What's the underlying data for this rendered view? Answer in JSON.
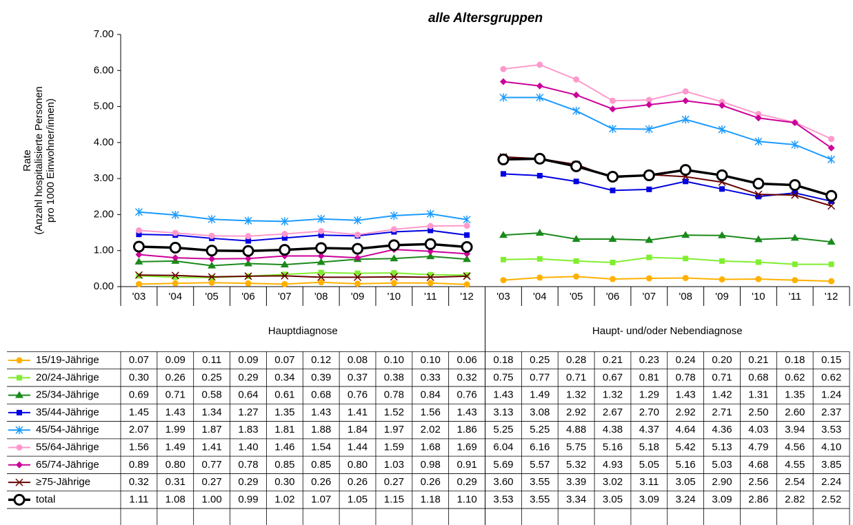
{
  "chart_data": {
    "type": "line",
    "title": "alle Altersgruppen",
    "ylabel": [
      "Rate",
      "(Anzahl hospitalisierte Personen",
      "pro 1000 Einwohner/innen)"
    ],
    "category_groups": [
      "Hauptdiagnose",
      "Haupt- und/oder Nebendiagnose"
    ],
    "categories": [
      "'03",
      "'04",
      "'05",
      "'06",
      "'07",
      "'08",
      "'09",
      "'10",
      "'11",
      "'12",
      "'03",
      "'04",
      "'05",
      "'06",
      "'07",
      "'08",
      "'09",
      "'10",
      "'11",
      "'12"
    ],
    "ylim": [
      0,
      7
    ],
    "yticks": [
      {
        "value": 0,
        "label": "0.00"
      },
      {
        "value": 1,
        "label": "1.00"
      },
      {
        "value": 2,
        "label": "2.00"
      },
      {
        "value": 3,
        "label": "3.00"
      },
      {
        "value": 4,
        "label": "4.00"
      },
      {
        "value": 5,
        "label": "5.00"
      },
      {
        "value": 6,
        "label": "6.00"
      },
      {
        "value": 7,
        "label": "7.00"
      }
    ],
    "series": [
      {
        "name": "15/19-Jährige",
        "color": "#ffb000",
        "marker": "circle",
        "values": [
          0.07,
          0.09,
          0.11,
          0.09,
          0.07,
          0.12,
          0.08,
          0.1,
          0.1,
          0.06,
          0.18,
          0.25,
          0.28,
          0.21,
          0.23,
          0.24,
          0.2,
          0.21,
          0.18,
          0.15
        ],
        "value_labels": [
          "0.07",
          "0.09",
          "0.11",
          "0.09",
          "0.07",
          "0.12",
          "0.08",
          "0.10",
          "0.10",
          "0.06",
          "0.18",
          "0.25",
          "0.28",
          "0.21",
          "0.23",
          "0.24",
          "0.20",
          "0.21",
          "0.18",
          "0.15"
        ]
      },
      {
        "name": "20/24-Jährige",
        "color": "#80ee30",
        "marker": "square",
        "values": [
          0.3,
          0.26,
          0.25,
          0.29,
          0.34,
          0.39,
          0.37,
          0.38,
          0.33,
          0.32,
          0.75,
          0.77,
          0.71,
          0.67,
          0.81,
          0.78,
          0.71,
          0.68,
          0.62,
          0.62
        ],
        "value_labels": [
          "0.30",
          "0.26",
          "0.25",
          "0.29",
          "0.34",
          "0.39",
          "0.37",
          "0.38",
          "0.33",
          "0.32",
          "0.75",
          "0.77",
          "0.71",
          "0.67",
          "0.81",
          "0.78",
          "0.71",
          "0.68",
          "0.62",
          "0.62"
        ]
      },
      {
        "name": "25/34-Jährige",
        "color": "#1a8a1a",
        "marker": "triangle",
        "values": [
          0.69,
          0.71,
          0.58,
          0.64,
          0.61,
          0.68,
          0.76,
          0.78,
          0.84,
          0.76,
          1.43,
          1.49,
          1.32,
          1.32,
          1.29,
          1.43,
          1.42,
          1.31,
          1.35,
          1.24
        ],
        "value_labels": [
          "0.69",
          "0.71",
          "0.58",
          "0.64",
          "0.61",
          "0.68",
          "0.76",
          "0.78",
          "0.84",
          "0.76",
          "1.43",
          "1.49",
          "1.32",
          "1.32",
          "1.29",
          "1.43",
          "1.42",
          "1.31",
          "1.35",
          "1.24"
        ]
      },
      {
        "name": "35/44-Jährige",
        "color": "#0000e0",
        "marker": "square",
        "values": [
          1.45,
          1.43,
          1.34,
          1.27,
          1.35,
          1.43,
          1.41,
          1.52,
          1.56,
          1.43,
          3.13,
          3.08,
          2.92,
          2.67,
          2.7,
          2.92,
          2.71,
          2.5,
          2.6,
          2.37
        ],
        "value_labels": [
          "1.45",
          "1.43",
          "1.34",
          "1.27",
          "1.35",
          "1.43",
          "1.41",
          "1.52",
          "1.56",
          "1.43",
          "3.13",
          "3.08",
          "2.92",
          "2.67",
          "2.70",
          "2.92",
          "2.71",
          "2.50",
          "2.60",
          "2.37"
        ]
      },
      {
        "name": "45/54-Jährige",
        "color": "#1a9bff",
        "marker": "star",
        "values": [
          2.07,
          1.99,
          1.87,
          1.83,
          1.81,
          1.88,
          1.84,
          1.97,
          2.02,
          1.86,
          5.25,
          5.25,
          4.88,
          4.38,
          4.37,
          4.64,
          4.36,
          4.03,
          3.94,
          3.53
        ],
        "value_labels": [
          "2.07",
          "1.99",
          "1.87",
          "1.83",
          "1.81",
          "1.88",
          "1.84",
          "1.97",
          "2.02",
          "1.86",
          "5.25",
          "5.25",
          "4.88",
          "4.38",
          "4.37",
          "4.64",
          "4.36",
          "4.03",
          "3.94",
          "3.53"
        ]
      },
      {
        "name": "55/64-Jährige",
        "color": "#ff99cc",
        "marker": "circle",
        "values": [
          1.56,
          1.49,
          1.41,
          1.4,
          1.46,
          1.54,
          1.44,
          1.59,
          1.68,
          1.69,
          6.04,
          6.16,
          5.75,
          5.16,
          5.18,
          5.42,
          5.13,
          4.79,
          4.56,
          4.1
        ],
        "value_labels": [
          "1.56",
          "1.49",
          "1.41",
          "1.40",
          "1.46",
          "1.54",
          "1.44",
          "1.59",
          "1.68",
          "1.69",
          "6.04",
          "6.16",
          "5.75",
          "5.16",
          "5.18",
          "5.42",
          "5.13",
          "4.79",
          "4.56",
          "4.10"
        ]
      },
      {
        "name": "65/74-Jährige",
        "color": "#cc0099",
        "marker": "diamond",
        "values": [
          0.89,
          0.8,
          0.77,
          0.78,
          0.85,
          0.85,
          0.8,
          1.03,
          0.98,
          0.91,
          5.69,
          5.57,
          5.32,
          4.93,
          5.05,
          5.16,
          5.03,
          4.68,
          4.55,
          3.85
        ],
        "value_labels": [
          "0.89",
          "0.80",
          "0.77",
          "0.78",
          "0.85",
          "0.85",
          "0.80",
          "1.03",
          "0.98",
          "0.91",
          "5.69",
          "5.57",
          "5.32",
          "4.93",
          "5.05",
          "5.16",
          "5.03",
          "4.68",
          "4.55",
          "3.85"
        ]
      },
      {
        "name": "≥75-Jährige",
        "color": "#660000",
        "marker": "x",
        "values": [
          0.32,
          0.31,
          0.27,
          0.29,
          0.3,
          0.26,
          0.26,
          0.27,
          0.26,
          0.29,
          3.6,
          3.55,
          3.39,
          3.02,
          3.11,
          3.05,
          2.9,
          2.56,
          2.54,
          2.24
        ],
        "value_labels": [
          "0.32",
          "0.31",
          "0.27",
          "0.29",
          "0.30",
          "0.26",
          "0.26",
          "0.27",
          "0.26",
          "0.29",
          "3.60",
          "3.55",
          "3.39",
          "3.02",
          "3.11",
          "3.05",
          "2.90",
          "2.56",
          "2.54",
          "2.24"
        ]
      },
      {
        "name": "total",
        "color": "#000000",
        "marker": "open-circle",
        "values": [
          1.11,
          1.08,
          1.0,
          0.99,
          1.02,
          1.07,
          1.05,
          1.15,
          1.18,
          1.1,
          3.53,
          3.55,
          3.34,
          3.05,
          3.09,
          3.24,
          3.09,
          2.86,
          2.82,
          2.52
        ],
        "value_labels": [
          "1.11",
          "1.08",
          "1.00",
          "0.99",
          "1.02",
          "1.07",
          "1.05",
          "1.15",
          "1.18",
          "1.10",
          "3.53",
          "3.55",
          "3.34",
          "3.05",
          "3.09",
          "3.24",
          "3.09",
          "2.86",
          "2.82",
          "2.52"
        ]
      }
    ]
  }
}
